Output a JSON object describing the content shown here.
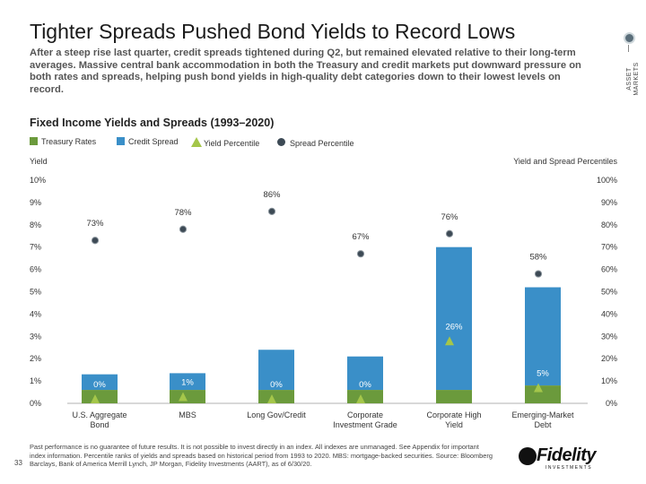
{
  "header": {
    "title": "Tighter Spreads Pushed Bond Yields to Record Lows",
    "subtitle": "After a steep rise last quarter, credit spreads tightened during Q2, but remained elevated relative to their long-term averages. Massive central bank accommodation in both the Treasury and credit markets put downward pressure on both rates and spreads, helping push bond yields in high-quality debt categories down to their lowest levels on record.",
    "side_tag": "ASSET MARKETS"
  },
  "chart_data": {
    "type": "bar",
    "title": "Fixed Income Yields and Spreads (1993–2020)",
    "ylabel_left": "Yield",
    "ylabel_right": "Yield and Spread Percentiles",
    "ylim_left": [
      0,
      10
    ],
    "ylim_right": [
      0,
      100
    ],
    "left_ticks": [
      "0%",
      "1%",
      "2%",
      "3%",
      "4%",
      "5%",
      "6%",
      "7%",
      "8%",
      "9%",
      "10%"
    ],
    "right_ticks": [
      "0%",
      "10%",
      "20%",
      "30%",
      "40%",
      "50%",
      "60%",
      "70%",
      "80%",
      "90%",
      "100%"
    ],
    "categories": [
      "U.S. Aggregate Bond",
      "MBS",
      "Long Gov/Credit",
      "Corporate Investment Grade",
      "Corporate High Yield",
      "Emerging-Market Debt"
    ],
    "legend": [
      "Treasury Rates",
      "Credit Spread",
      "Yield Percentile",
      "Spread Percentile"
    ],
    "colors": {
      "treasury": "#6b9a3c",
      "spread": "#3a8fc8",
      "yield_percentile": "#a4c64a",
      "spread_percentile": "#3d4a55"
    },
    "series": [
      {
        "name": "Treasury Rates",
        "values": [
          0.6,
          0.6,
          0.6,
          0.6,
          0.6,
          0.8
        ]
      },
      {
        "name": "Credit Spread",
        "values": [
          0.7,
          0.75,
          1.8,
          1.5,
          6.4,
          4.4
        ]
      },
      {
        "name": "Yield Percentile",
        "values": [
          0,
          1,
          0,
          0,
          26,
          5
        ],
        "labels": [
          "0%",
          "1%",
          "0%",
          "0%",
          "26%",
          "5%"
        ]
      },
      {
        "name": "Spread Percentile",
        "values": [
          73,
          78,
          86,
          67,
          76,
          58
        ],
        "labels": [
          "73%",
          "78%",
          "86%",
          "67%",
          "76%",
          "58%"
        ]
      }
    ]
  },
  "footer": {
    "footnote": "Past performance is no guarantee of future results. It is not possible to invest directly in an index. All indexes are unmanaged. See Appendix for important index information. Percentile ranks of yields and spreads based on historical period from 1993 to 2020. MBS: mortgage-backed securities. Source: Bloomberg Barclays, Bank of America Merrill Lynch, JP Morgan, Fidelity Investments (AART), as of 6/30/20.",
    "page_number": "33",
    "logo_text": "Fidelity",
    "logo_subtext": "INVESTMENTS"
  }
}
